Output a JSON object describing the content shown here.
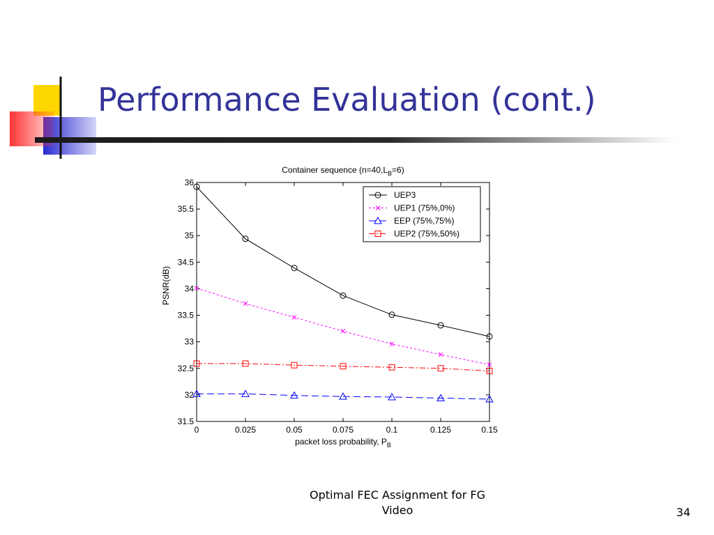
{
  "slide": {
    "title": "Performance Evaluation (cont.)",
    "footer_line1": "Optimal FEC Assignment for FG",
    "footer_line2": "Video",
    "page_number": "34"
  },
  "colors": {
    "title": "#333399",
    "deco_yellow": "#ffd700",
    "deco_red": "#ff3333",
    "deco_blue": "#2b2bd1"
  },
  "chart_data": {
    "type": "line",
    "title": "Container sequence (n=40,L",
    "title_sub": "B",
    "title_tail": "=6)",
    "xlabel": "packet loss probability, P",
    "xlabel_sub": "B",
    "ylabel": "PSNR(dB)",
    "x": [
      0,
      0.025,
      0.05,
      0.075,
      0.1,
      0.125,
      0.15
    ],
    "xlim": [
      0,
      0.15
    ],
    "ylim": [
      31.5,
      36
    ],
    "x_ticks": [
      0,
      0.025,
      0.05,
      0.075,
      0.1,
      0.125,
      0.15
    ],
    "x_tick_labels": [
      "0",
      "0.025",
      "0.05",
      "0.075",
      "0.1",
      "0.125",
      "0.15"
    ],
    "y_ticks": [
      31.5,
      32,
      32.5,
      33,
      33.5,
      34,
      34.5,
      35,
      35.5,
      36
    ],
    "y_tick_labels": [
      "31.5",
      "32",
      "32.5",
      "33",
      "33.5",
      "34",
      "34.5",
      "35",
      "35.5",
      "36"
    ],
    "grid": false,
    "legend_position": "top-right",
    "series": [
      {
        "name": "UEP3",
        "values": [
          35.92,
          34.94,
          34.39,
          33.87,
          33.51,
          33.31,
          33.1
        ],
        "color": "#000000",
        "dash": "",
        "marker": "circle"
      },
      {
        "name": "UEP1 (75%,0%)",
        "values": [
          34.01,
          33.72,
          33.46,
          33.2,
          32.96,
          32.76,
          32.57
        ],
        "color": "#ff00ff",
        "dash": "3,3",
        "marker": "x"
      },
      {
        "name": "EEP (75%,75%)",
        "values": [
          32.02,
          32.02,
          31.99,
          31.97,
          31.96,
          31.94,
          31.92
        ],
        "color": "#0000ff",
        "dash": "10,5",
        "marker": "triangle"
      },
      {
        "name": "UEP2 (75%,50%)",
        "values": [
          32.59,
          32.59,
          32.56,
          32.54,
          32.52,
          32.5,
          32.45
        ],
        "color": "#ff0000",
        "dash": "8,3,2,3",
        "marker": "square"
      }
    ]
  }
}
